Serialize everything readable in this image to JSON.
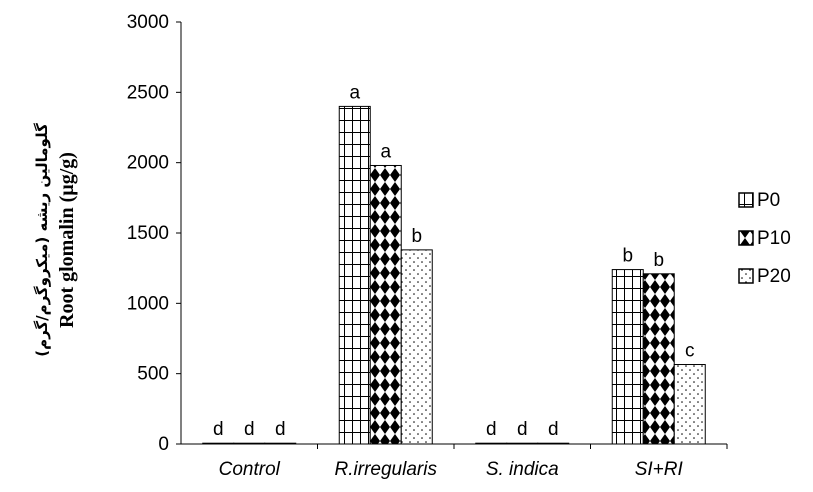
{
  "chart_data": {
    "type": "bar",
    "ylabel": "Root glomalin (µg/g)",
    "ylabel_secondary": "گلومالین ریشه (میکروگرم/گرم)",
    "ylim": [
      0,
      3000
    ],
    "yticks": [
      "0",
      "500",
      "1000",
      "1500",
      "2000",
      "2500",
      "3000"
    ],
    "categories": [
      "Control",
      "R.irregularis",
      "S. indica",
      "SI+RI"
    ],
    "legend_position": "right",
    "series": [
      {
        "name": "P0",
        "pattern": "grid",
        "values": [
          0,
          2400,
          0,
          1240
        ],
        "letters": [
          "d",
          "a",
          "d",
          "b"
        ]
      },
      {
        "name": "P10",
        "pattern": "diamond",
        "values": [
          0,
          1980,
          0,
          1210
        ],
        "letters": [
          "d",
          "a",
          "d",
          "b"
        ]
      },
      {
        "name": "P20",
        "pattern": "dots",
        "values": [
          0,
          1380,
          0,
          565
        ],
        "letters": [
          "d",
          "b",
          "d",
          "c"
        ]
      }
    ]
  }
}
